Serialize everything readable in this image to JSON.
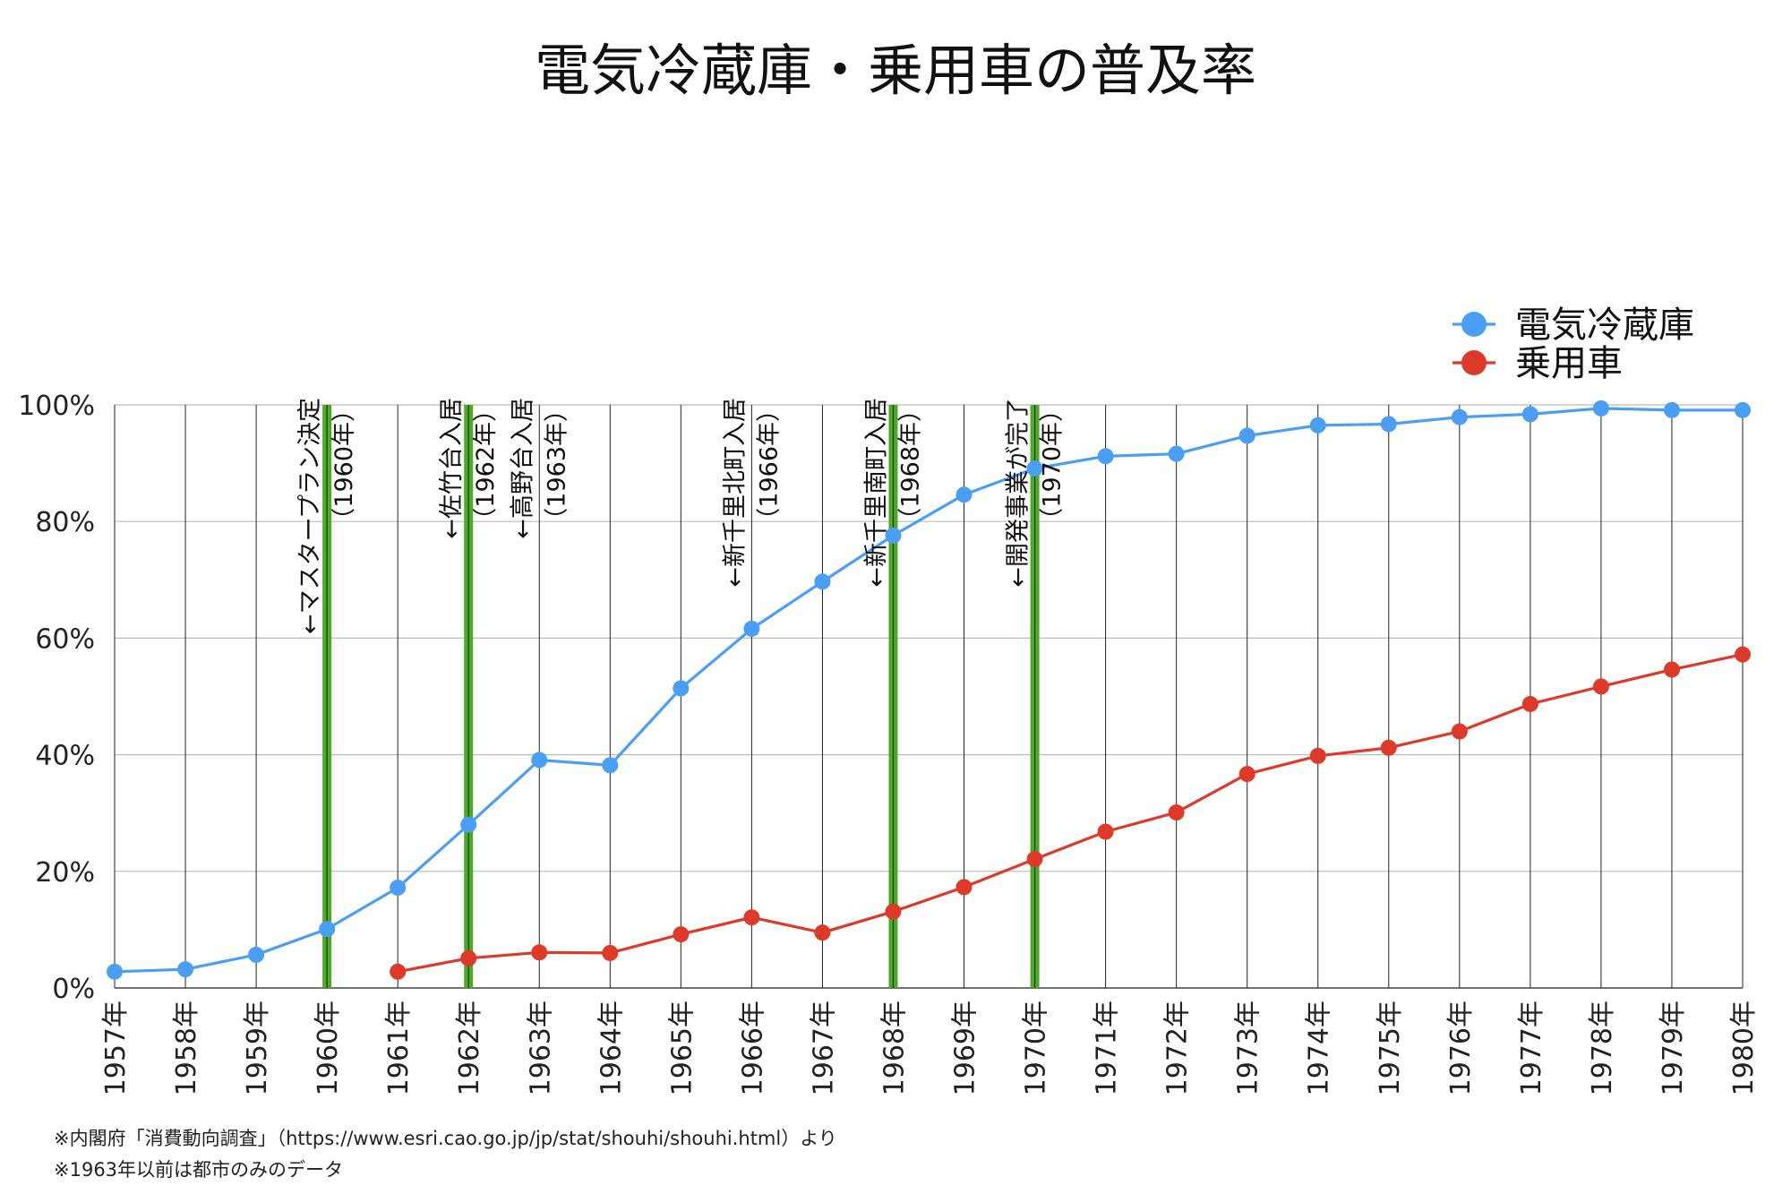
{
  "title": "電気冷蔵庫・乗用車の普及率",
  "notes": [
    "※内閣府「消費動向調査」（https://www.esri.cao.go.jp/jp/stat/shouhi/shouhi.html）より",
    "※1963年以前は都市のみのデータ"
  ],
  "colors": {
    "fridge": "#4a9ff5",
    "car": "#dd3a2a",
    "event": "#4ea82a",
    "grid": "#bbbbbb",
    "vgrid": "#222222"
  },
  "chart_data": {
    "type": "line",
    "title": "電気冷蔵庫・乗用車の普及率",
    "x": [
      "1957年",
      "1958年",
      "1959年",
      "1960年",
      "1961年",
      "1962年",
      "1963年",
      "1964年",
      "1965年",
      "1966年",
      "1967年",
      "1968年",
      "1969年",
      "1970年",
      "1971年",
      "1972年",
      "1973年",
      "1974年",
      "1975年",
      "1976年",
      "1977年",
      "1978年",
      "1979年",
      "1980年"
    ],
    "ylim": [
      0,
      100
    ],
    "yticks": [
      "0%",
      "20%",
      "40%",
      "60%",
      "80%",
      "100%"
    ],
    "ytick_values": [
      0,
      20,
      40,
      60,
      80,
      100
    ],
    "grid": true,
    "legend_position": "top-right",
    "series": [
      {
        "name": "電気冷蔵庫",
        "color": "#4a9ff5",
        "values": [
          2.8,
          3.2,
          5.7,
          10.1,
          17.2,
          28.0,
          39.1,
          38.2,
          51.4,
          61.6,
          69.7,
          77.6,
          84.6,
          89.1,
          91.2,
          91.6,
          94.7,
          96.5,
          96.7,
          97.9,
          98.4,
          99.4,
          99.1,
          99.1
        ]
      },
      {
        "name": "乗用車",
        "color": "#dd3a2a",
        "values": [
          null,
          null,
          null,
          null,
          2.8,
          5.1,
          6.1,
          6.0,
          9.2,
          12.1,
          9.5,
          13.1,
          17.3,
          22.1,
          26.8,
          30.1,
          36.7,
          39.8,
          41.2,
          44.0,
          48.7,
          51.7,
          54.6,
          57.2
        ]
      }
    ],
    "annotations": [
      {
        "year": "1960年",
        "lines": [
          "←マスタープラン決定",
          "（1960年）"
        ]
      },
      {
        "year": "1962年",
        "lines": [
          "←佐竹台入居",
          "（1962年）"
        ]
      },
      {
        "year": "1963年",
        "lines": [
          "←高野台入居",
          "（1963年）"
        ]
      },
      {
        "year": "1966年",
        "lines": [
          "←新千里北町入居",
          "（1966年）"
        ]
      },
      {
        "year": "1968年",
        "lines": [
          "←新千里南町入居",
          "（1968年）"
        ]
      },
      {
        "year": "1970年",
        "lines": [
          "←開発事業が完了",
          "（1970年）"
        ]
      }
    ],
    "event_lines": [
      "1960年",
      "1962年",
      "1968年",
      "1970年"
    ]
  }
}
